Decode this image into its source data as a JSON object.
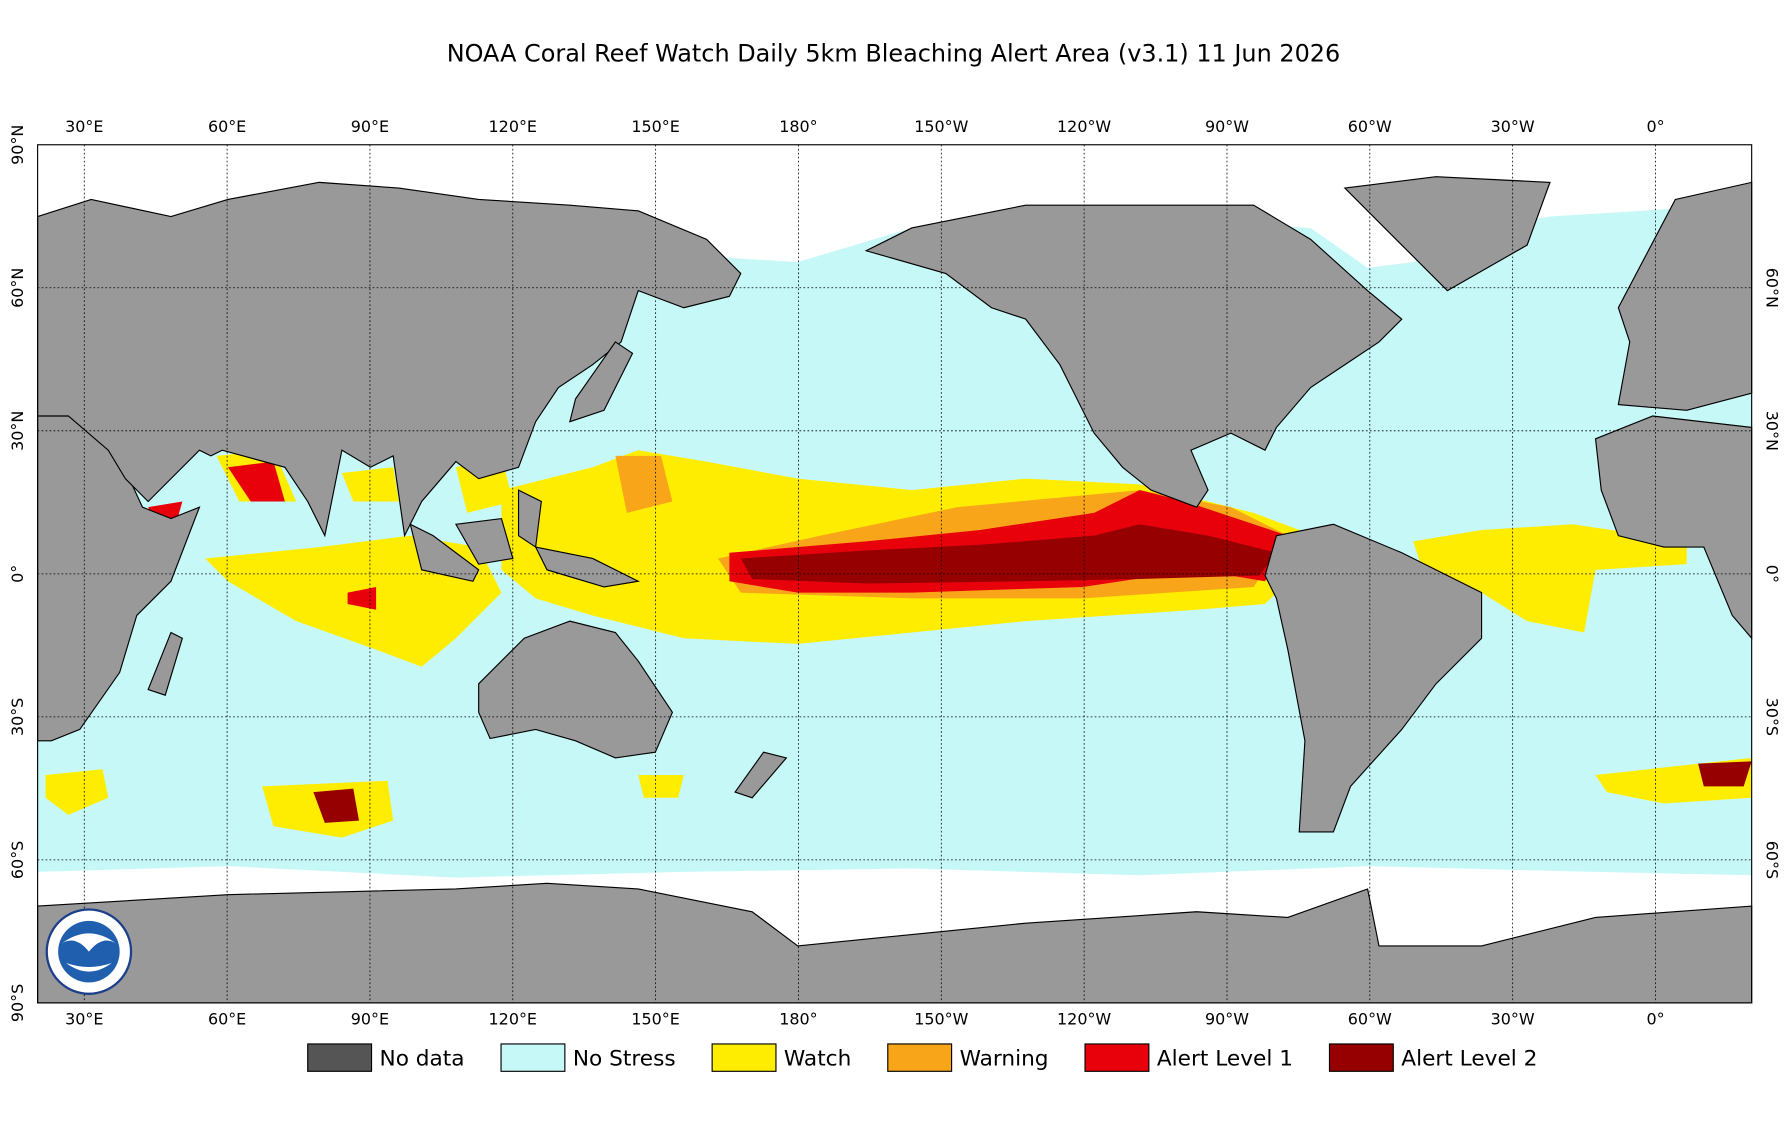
{
  "title": "NOAA Coral Reef Watch Daily 5km Bleaching Alert Area  (v3.1)   11 Jun 2026",
  "xlim": [
    20.2,
    380.2
  ],
  "ylim": [
    -90,
    90
  ],
  "lon_ticks": [
    {
      "value": 30,
      "label": "30°E"
    },
    {
      "value": 60,
      "label": "60°E"
    },
    {
      "value": 90,
      "label": "90°E"
    },
    {
      "value": 120,
      "label": "120°E"
    },
    {
      "value": 150,
      "label": "150°E"
    },
    {
      "value": 180,
      "label": "180°"
    },
    {
      "value": -150,
      "label": "150°W"
    },
    {
      "value": -120,
      "label": "120°W"
    },
    {
      "value": -90,
      "label": "90°W"
    },
    {
      "value": -60,
      "label": "60°W"
    },
    {
      "value": -30,
      "label": "30°W"
    },
    {
      "value": 0,
      "label": "0°"
    }
  ],
  "lat_ticks": [
    {
      "value": 90,
      "label": "90°N"
    },
    {
      "value": 60,
      "label": "60°N"
    },
    {
      "value": 30,
      "label": "30°N"
    },
    {
      "value": 0,
      "label": "0°"
    },
    {
      "value": -30,
      "label": "30°S"
    },
    {
      "value": -60,
      "label": "60°S"
    },
    {
      "value": -90,
      "label": "90°S"
    }
  ],
  "legend": [
    {
      "label": "No data",
      "color": "#555555"
    },
    {
      "label": "No Stress",
      "color": "#c6f8f8"
    },
    {
      "label": "Watch",
      "color": "#ffed00"
    },
    {
      "label": "Warning",
      "color": "#f9a51a"
    },
    {
      "label": "Alert Level 1",
      "color": "#e8000b"
    },
    {
      "label": "Alert Level 2",
      "color": "#960000"
    }
  ]
}
